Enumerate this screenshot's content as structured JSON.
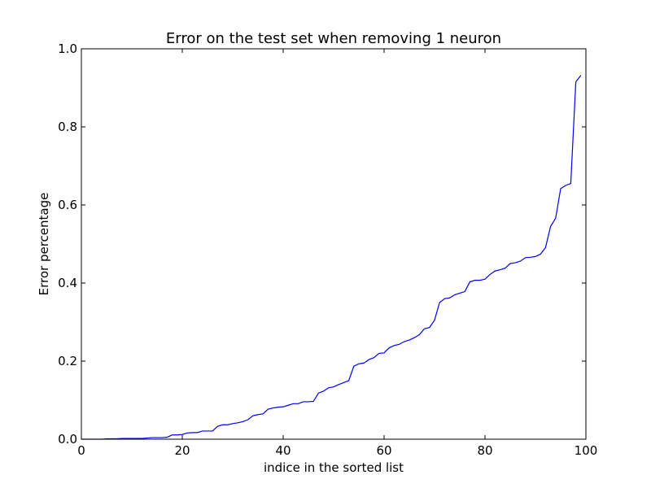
{
  "chart_data": {
    "type": "line",
    "title": "Error on the test set when removing 1 neuron",
    "xlabel": "indice in the sorted list",
    "ylabel": "Error percentage",
    "xlim": [
      0,
      100
    ],
    "ylim": [
      0.0,
      1.0
    ],
    "xticks": [
      0,
      20,
      40,
      60,
      80,
      100
    ],
    "xtick_labels": [
      "0",
      "20",
      "40",
      "60",
      "80",
      "100"
    ],
    "yticks": [
      0.0,
      0.2,
      0.4,
      0.6,
      0.8,
      1.0
    ],
    "ytick_labels": [
      "0.0",
      "0.2",
      "0.4",
      "0.6",
      "0.8",
      "1.0"
    ],
    "grid": false,
    "series": [
      {
        "color": "#0000ff",
        "x": [
          0,
          1,
          2,
          3,
          4,
          5,
          6,
          7,
          8,
          9,
          10,
          11,
          12,
          13,
          14,
          15,
          16,
          17,
          18,
          19,
          20,
          21,
          22,
          23,
          24,
          25,
          26,
          27,
          28,
          29,
          30,
          31,
          32,
          33,
          34,
          35,
          36,
          37,
          38,
          39,
          40,
          41,
          42,
          43,
          44,
          45,
          46,
          47,
          48,
          49,
          50,
          51,
          52,
          53,
          54,
          55,
          56,
          57,
          58,
          59,
          60,
          61,
          62,
          63,
          64,
          65,
          66,
          67,
          68,
          69,
          70,
          71,
          72,
          73,
          74,
          75,
          76,
          77,
          78,
          79,
          80,
          81,
          82,
          83,
          84,
          85,
          86,
          87,
          88,
          89,
          90,
          91,
          92,
          93,
          94,
          95,
          96,
          97,
          98,
          99
        ],
        "y": [
          0.0,
          0.0,
          0.0,
          0.0,
          0.0,
          0.001,
          0.001,
          0.001,
          0.002,
          0.002,
          0.002,
          0.002,
          0.002,
          0.003,
          0.004,
          0.004,
          0.004,
          0.005,
          0.011,
          0.011,
          0.012,
          0.016,
          0.017,
          0.017,
          0.021,
          0.021,
          0.021,
          0.033,
          0.037,
          0.037,
          0.04,
          0.042,
          0.045,
          0.05,
          0.06,
          0.063,
          0.065,
          0.077,
          0.08,
          0.082,
          0.083,
          0.087,
          0.091,
          0.091,
          0.096,
          0.096,
          0.097,
          0.118,
          0.123,
          0.132,
          0.134,
          0.14,
          0.145,
          0.15,
          0.187,
          0.193,
          0.195,
          0.204,
          0.209,
          0.22,
          0.221,
          0.234,
          0.24,
          0.243,
          0.25,
          0.254,
          0.26,
          0.268,
          0.283,
          0.286,
          0.305,
          0.35,
          0.36,
          0.362,
          0.37,
          0.374,
          0.378,
          0.403,
          0.407,
          0.407,
          0.41,
          0.422,
          0.431,
          0.434,
          0.438,
          0.45,
          0.452,
          0.456,
          0.465,
          0.466,
          0.468,
          0.474,
          0.491,
          0.545,
          0.566,
          0.642,
          0.65,
          0.655,
          0.915,
          0.932
        ]
      }
    ]
  }
}
